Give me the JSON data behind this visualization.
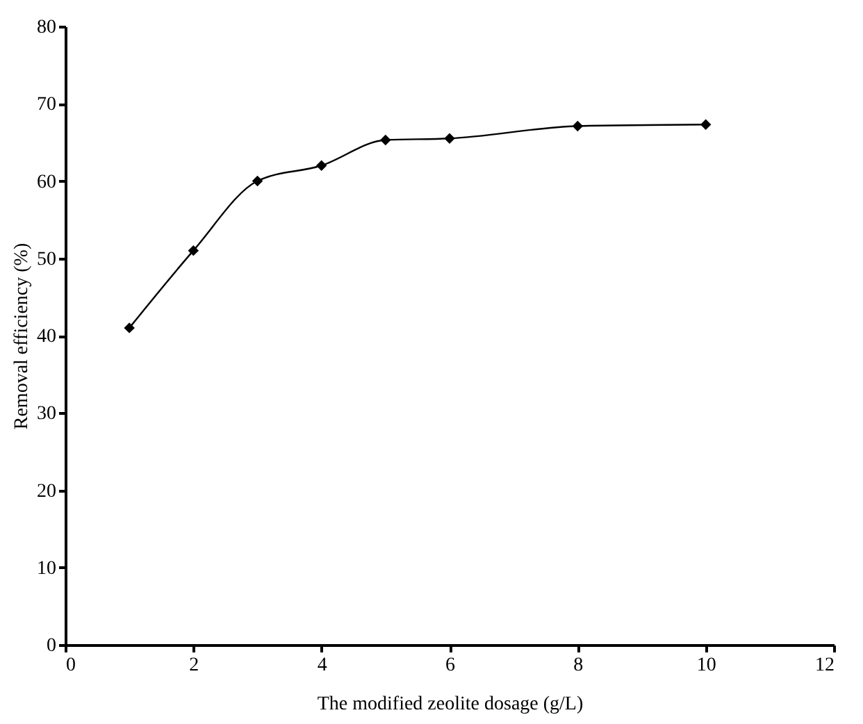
{
  "chart_data": {
    "type": "line",
    "xlabel": "The modified zeolite dosage (g/L)",
    "ylabel": "Removal efficiency (%)",
    "x": [
      1,
      2,
      3,
      4,
      5,
      6,
      8,
      10
    ],
    "series": [
      {
        "color": "#000000",
        "values": [
          41,
          51,
          60,
          62,
          65.3,
          65.5,
          67.1,
          67.3
        ]
      }
    ],
    "xlim": [
      0,
      12
    ],
    "xticks": [
      0,
      2,
      4,
      6,
      8,
      10,
      12
    ],
    "ylim": [
      0,
      80
    ],
    "yticks": [
      0,
      10,
      20,
      30,
      40,
      50,
      60,
      70,
      80
    ],
    "grid": false,
    "marker": "diamond",
    "line_style": "solid"
  }
}
